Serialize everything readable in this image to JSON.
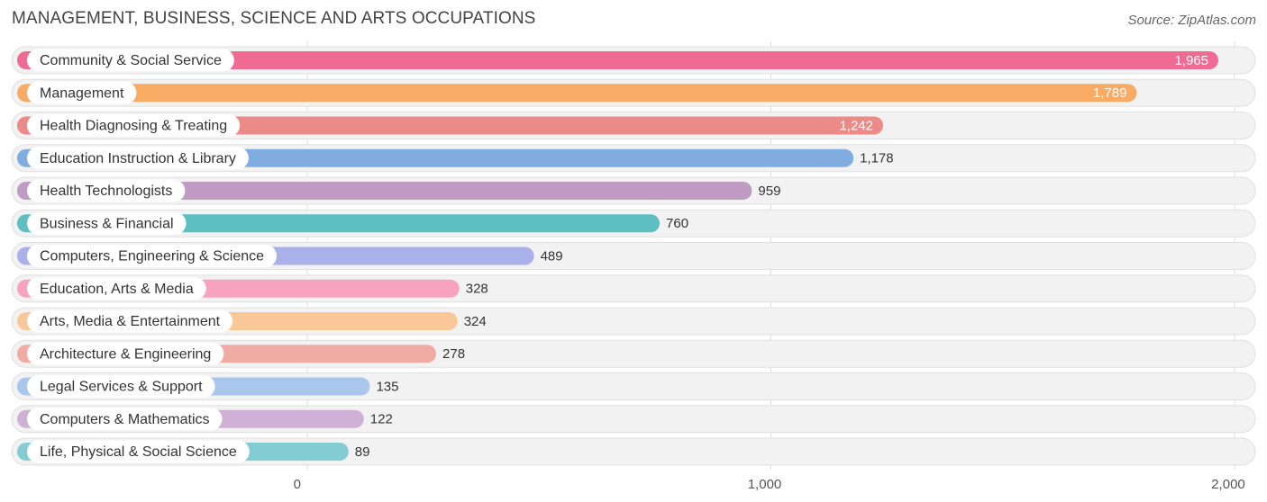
{
  "title": "MANAGEMENT, BUSINESS, SCIENCE AND ARTS OCCUPATIONS",
  "source": "Source: ZipAtlas.com",
  "chart_data": {
    "type": "bar",
    "orientation": "horizontal",
    "categories": [
      "Community & Social Service",
      "Management",
      "Health Diagnosing & Treating",
      "Education Instruction & Library",
      "Health Technologists",
      "Business & Financial",
      "Computers, Engineering & Science",
      "Education, Arts & Media",
      "Arts, Media & Entertainment",
      "Architecture & Engineering",
      "Legal Services & Support",
      "Computers & Mathematics",
      "Life, Physical & Social Science"
    ],
    "values": [
      1965,
      1789,
      1242,
      1178,
      959,
      760,
      489,
      328,
      324,
      278,
      135,
      122,
      89
    ],
    "value_labels": [
      "1,965",
      "1,789",
      "1,242",
      "1,178",
      "959",
      "760",
      "489",
      "328",
      "324",
      "278",
      "135",
      "122",
      "89"
    ],
    "colors": [
      "#f06b93",
      "#f7ab65",
      "#ea8b87",
      "#80ace0",
      "#c09bc4",
      "#5dbfc2",
      "#aab1ea",
      "#f7a3bf",
      "#fac898",
      "#f0aba4",
      "#a9c6ec",
      "#ceb1d4",
      "#84ccd4"
    ],
    "xlim": [
      0,
      2000
    ],
    "xticks": [
      0,
      1000,
      2000
    ],
    "xtick_labels": [
      "0",
      "1,000",
      "2,000"
    ],
    "grid": true
  }
}
